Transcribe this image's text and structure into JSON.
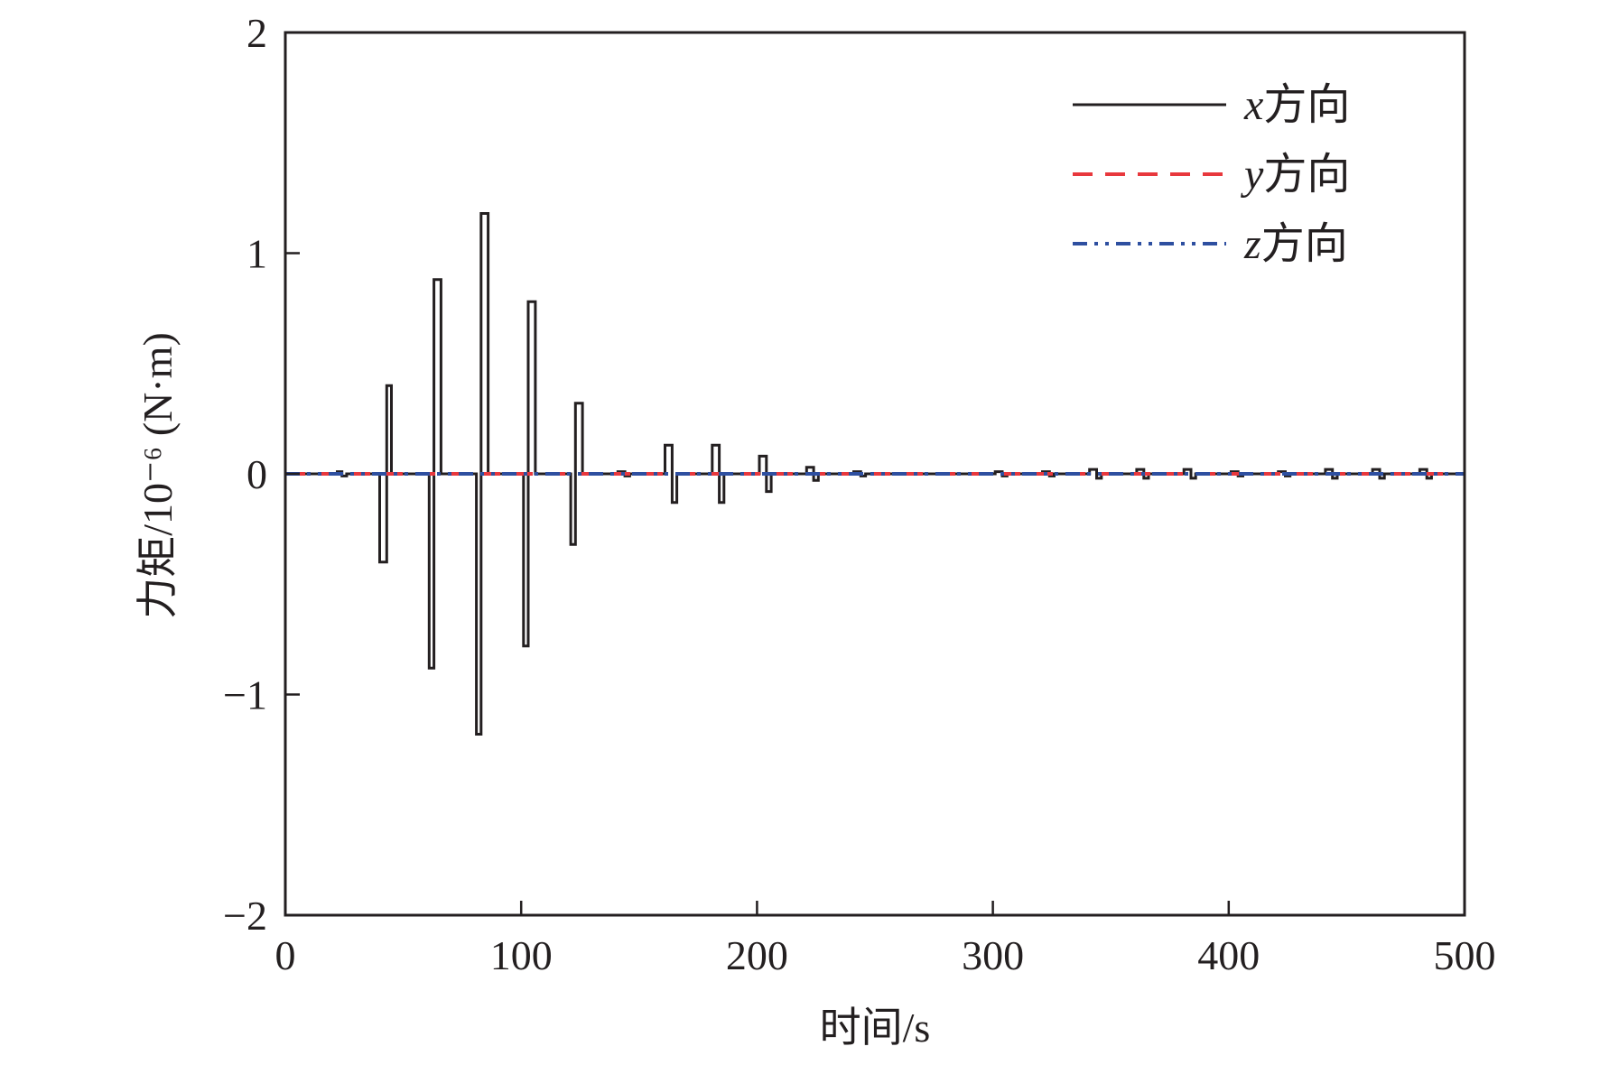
{
  "chart_data": {
    "type": "line",
    "title": "",
    "xlabel": "时间/s",
    "ylabel": "力矩/10⁻⁶ (N·m)",
    "xlim": [
      0,
      500
    ],
    "ylim": [
      -2,
      2
    ],
    "x_ticks": [
      "0",
      "100",
      "200",
      "300",
      "400",
      "500"
    ],
    "y_ticks": [
      "−2",
      "−1",
      "0",
      "1",
      "2"
    ],
    "grid": false,
    "legend_position": "top-right",
    "series": [
      {
        "name": "x方向",
        "var": "x",
        "label_rest": "方向",
        "color": "#231f20",
        "style": "solid",
        "x": [
          0,
          22,
          22,
          24,
          24,
          26,
          26,
          40,
          40,
          43,
          43,
          45,
          45,
          61,
          61,
          63,
          63,
          66,
          66,
          81,
          81,
          83,
          83,
          86,
          86,
          101,
          101,
          103,
          103,
          106,
          106,
          121,
          121,
          123,
          123,
          126,
          126,
          141,
          141,
          144,
          144,
          146,
          146,
          161,
          161,
          164,
          164,
          166,
          166,
          181,
          181,
          184,
          184,
          186,
          186,
          201,
          201,
          204,
          204,
          206,
          206,
          221,
          221,
          224,
          224,
          226,
          226,
          241,
          241,
          244,
          244,
          246,
          246,
          301,
          301,
          304,
          304,
          306,
          306,
          321,
          321,
          324,
          324,
          326,
          326,
          341,
          341,
          344,
          344,
          346,
          346,
          361,
          361,
          364,
          364,
          366,
          366,
          381,
          381,
          384,
          384,
          386,
          386,
          401,
          401,
          404,
          404,
          406,
          406,
          421,
          421,
          424,
          424,
          426,
          426,
          441,
          441,
          444,
          444,
          446,
          446,
          461,
          461,
          464,
          464,
          466,
          466,
          481,
          481,
          484,
          484,
          486,
          486,
          500
        ],
        "y": [
          0,
          0,
          0.01,
          0.01,
          -0.01,
          -0.01,
          0,
          0,
          -0.4,
          -0.4,
          0.4,
          0.4,
          0,
          0,
          -0.88,
          -0.88,
          0.88,
          0.88,
          0,
          0,
          -1.18,
          -1.18,
          1.18,
          1.18,
          0,
          0,
          -0.78,
          -0.78,
          0.78,
          0.78,
          0,
          0,
          -0.32,
          -0.32,
          0.32,
          0.32,
          0,
          0,
          0.01,
          0.01,
          -0.01,
          -0.01,
          0,
          0,
          0.13,
          0.13,
          -0.13,
          -0.13,
          0,
          0,
          0.13,
          0.13,
          -0.13,
          -0.13,
          0,
          0,
          0.08,
          0.08,
          -0.08,
          -0.08,
          0,
          0,
          0.03,
          0.03,
          -0.03,
          -0.03,
          0,
          0,
          0.01,
          0.01,
          -0.01,
          -0.01,
          0,
          0,
          0.01,
          0.01,
          -0.01,
          -0.01,
          0,
          0,
          0.01,
          0.01,
          -0.01,
          -0.01,
          0,
          0,
          0.02,
          0.02,
          -0.02,
          -0.02,
          0,
          0,
          0.02,
          0.02,
          -0.02,
          -0.02,
          0,
          0,
          0.02,
          0.02,
          -0.02,
          -0.02,
          0,
          0,
          0.01,
          0.01,
          -0.01,
          -0.01,
          0,
          0,
          0.01,
          0.01,
          -0.01,
          -0.01,
          0,
          0,
          0.02,
          0.02,
          -0.02,
          -0.02,
          0,
          0,
          0.02,
          0.02,
          -0.02,
          -0.02,
          0,
          0,
          0.02,
          0.02,
          -0.02,
          -0.02,
          0,
          0
        ]
      },
      {
        "name": "y方向",
        "var": "y",
        "label_rest": "方向",
        "color": "#e8383d",
        "style": "dashed",
        "x": [
          0,
          500
        ],
        "y": [
          0,
          0
        ]
      },
      {
        "name": "z方向",
        "var": "z",
        "label_rest": "方向",
        "color": "#2e4fa0",
        "style": "dashdotdot",
        "x": [
          0,
          500
        ],
        "y": [
          0,
          0
        ]
      }
    ]
  }
}
